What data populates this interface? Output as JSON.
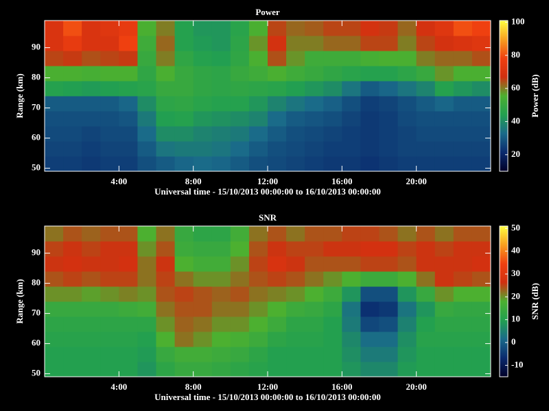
{
  "chart_data": [
    {
      "type": "heatmap",
      "title": "Power",
      "x_label": "Universal time - 15/10/2013 00:00:00 to 16/10/2013 00:00:00",
      "y_label": "Range (km)",
      "colorbar_label": "Power (dB)",
      "x": [
        0.5,
        1.5,
        2.5,
        3.5,
        4.5,
        5.5,
        6.5,
        7.5,
        8.5,
        9.5,
        10.5,
        11.5,
        12.5,
        13.5,
        14.5,
        15.5,
        16.5,
        17.5,
        18.5,
        19.5,
        20.5,
        21.5,
        22.5,
        23.5
      ],
      "y": [
        51.5,
        56.5,
        61.5,
        66.5,
        71.5,
        76.5,
        81.5,
        86.5,
        91.5,
        96.5
      ],
      "z": [
        [
          25,
          25,
          24,
          25,
          25,
          28,
          30,
          32,
          33,
          32,
          30,
          28,
          27,
          26,
          25,
          24,
          24,
          23,
          24,
          25,
          25,
          25,
          25,
          25
        ],
        [
          26,
          26,
          25,
          26,
          26,
          30,
          35,
          36,
          36,
          35,
          33,
          30,
          28,
          27,
          26,
          25,
          25,
          24,
          25,
          26,
          26,
          26,
          26,
          26
        ],
        [
          27,
          27,
          26,
          27,
          27,
          33,
          40,
          40,
          38,
          37,
          36,
          33,
          30,
          28,
          27,
          26,
          25,
          24,
          25,
          26,
          27,
          27,
          27,
          27
        ],
        [
          28,
          28,
          28,
          28,
          29,
          36,
          44,
          45,
          42,
          41,
          40,
          38,
          33,
          30,
          29,
          28,
          26,
          24,
          25,
          27,
          28,
          28,
          28,
          28
        ],
        [
          30,
          30,
          30,
          30,
          32,
          40,
          47,
          48,
          46,
          45,
          45,
          42,
          38,
          35,
          33,
          31,
          28,
          25,
          26,
          28,
          30,
          32,
          30,
          30
        ],
        [
          45,
          44,
          43,
          44,
          45,
          46,
          50,
          50,
          48,
          47,
          48,
          47,
          46,
          44,
          42,
          40,
          35,
          30,
          32,
          35,
          38,
          45,
          42,
          40
        ],
        [
          55,
          55,
          54,
          55,
          55,
          48,
          55,
          50,
          48,
          47,
          50,
          52,
          55,
          52,
          50,
          48,
          46,
          45,
          45,
          47,
          50,
          58,
          55,
          55
        ],
        [
          65,
          66,
          64,
          65,
          66,
          50,
          60,
          48,
          45,
          44,
          48,
          55,
          64,
          58,
          52,
          52,
          52,
          54,
          55,
          55,
          60,
          62,
          62,
          64
        ],
        [
          70,
          75,
          70,
          70,
          78,
          52,
          62,
          45,
          43,
          42,
          47,
          58,
          68,
          60,
          60,
          62,
          62,
          65,
          65,
          60,
          65,
          68,
          70,
          72
        ],
        [
          70,
          80,
          70,
          72,
          75,
          55,
          60,
          45,
          42,
          42,
          46,
          55,
          65,
          62,
          63,
          65,
          65,
          68,
          66,
          62,
          68,
          72,
          80,
          78
        ]
      ],
      "xlim": [
        0,
        24
      ],
      "xticks": [
        {
          "value": 4,
          "label": "4:00"
        },
        {
          "value": 8,
          "label": "8:00"
        },
        {
          "value": 12,
          "label": "12:00"
        },
        {
          "value": 16,
          "label": "16:00"
        },
        {
          "value": 20,
          "label": "20:00"
        }
      ],
      "ylim": [
        49,
        99
      ],
      "yticks": [
        50,
        60,
        70,
        80,
        90
      ],
      "clim": [
        10,
        101
      ],
      "cticks": [
        20,
        40,
        60,
        80,
        100
      ],
      "colormap": [
        "#000028",
        "#0a2a6e",
        "#1a6a8a",
        "#22a050",
        "#4cb030",
        "#d03010",
        "#f04010",
        "#f8a020",
        "#ffff40"
      ]
    },
    {
      "type": "heatmap",
      "title": "SNR",
      "x_label": "Universal time - 15/10/2013 00:00:00 to 16/10/2013 00:00:00",
      "y_label": "Range (km)",
      "colorbar_label": "SNR (dB)",
      "x": [
        0.5,
        1.5,
        2.5,
        3.5,
        4.5,
        5.5,
        6.5,
        7.5,
        8.5,
        9.5,
        10.5,
        11.5,
        12.5,
        13.5,
        14.5,
        15.5,
        16.5,
        17.5,
        18.5,
        19.5,
        20.5,
        21.5,
        22.5,
        23.5
      ],
      "y": [
        51.5,
        56.5,
        61.5,
        66.5,
        71.5,
        76.5,
        81.5,
        86.5,
        91.5,
        96.5
      ],
      "z": [
        [
          10,
          10,
          10,
          10,
          10,
          8,
          12,
          14,
          14,
          13,
          12,
          11,
          10,
          10,
          10,
          10,
          8,
          6,
          6,
          9,
          10,
          10,
          10,
          10
        ],
        [
          10,
          10,
          10,
          10,
          10,
          9,
          14,
          16,
          16,
          15,
          14,
          12,
          10,
          10,
          10,
          10,
          7,
          4,
          4,
          8,
          10,
          10,
          10,
          10
        ],
        [
          11,
          11,
          11,
          11,
          11,
          10,
          18,
          22,
          20,
          18,
          17,
          15,
          12,
          11,
          11,
          10,
          6,
          2,
          2,
          7,
          11,
          11,
          11,
          11
        ],
        [
          12,
          12,
          12,
          12,
          12,
          12,
          20,
          23,
          22,
          20,
          20,
          18,
          15,
          12,
          12,
          10,
          4,
          -3,
          -2,
          5,
          10,
          12,
          12,
          12
        ],
        [
          14,
          14,
          14,
          14,
          15,
          16,
          22,
          24,
          24,
          22,
          22,
          20,
          18,
          15,
          14,
          12,
          3,
          -6,
          -5,
          3,
          8,
          14,
          13,
          13
        ],
        [
          20,
          20,
          19,
          20,
          21,
          20,
          24,
          25,
          24,
          23,
          24,
          22,
          21,
          20,
          18,
          15,
          8,
          -2,
          -2,
          8,
          14,
          20,
          18,
          18
        ],
        [
          24,
          25,
          24,
          25,
          25,
          22,
          25,
          22,
          20,
          20,
          22,
          24,
          25,
          24,
          22,
          20,
          18,
          15,
          15,
          18,
          22,
          26,
          25,
          24
        ],
        [
          26,
          27,
          26,
          26,
          27,
          22,
          26,
          18,
          16,
          16,
          20,
          25,
          28,
          26,
          24,
          24,
          24,
          25,
          25,
          24,
          26,
          26,
          26,
          27
        ],
        [
          25,
          26,
          25,
          26,
          26,
          20,
          24,
          15,
          14,
          14,
          18,
          24,
          26,
          25,
          25,
          26,
          26,
          27,
          27,
          25,
          26,
          25,
          26,
          26
        ],
        [
          22,
          24,
          23,
          24,
          24,
          18,
          22,
          14,
          12,
          12,
          16,
          22,
          24,
          22,
          24,
          24,
          25,
          25,
          24,
          22,
          24,
          22,
          24,
          24
        ]
      ],
      "xlim": [
        0,
        24
      ],
      "xticks": [
        {
          "value": 4,
          "label": "4:00"
        },
        {
          "value": 8,
          "label": "8:00"
        },
        {
          "value": 12,
          "label": "12:00"
        },
        {
          "value": 16,
          "label": "16:00"
        },
        {
          "value": 20,
          "label": "20:00"
        }
      ],
      "ylim": [
        49,
        99
      ],
      "yticks": [
        50,
        60,
        70,
        80,
        90
      ],
      "clim": [
        -15,
        51
      ],
      "cticks": [
        -10,
        0,
        10,
        20,
        30,
        40,
        50
      ],
      "colormap": [
        "#000028",
        "#0a2a6e",
        "#1a6a8a",
        "#22a050",
        "#4cb030",
        "#d03010",
        "#f04010",
        "#f8a020",
        "#ffff40"
      ]
    }
  ]
}
